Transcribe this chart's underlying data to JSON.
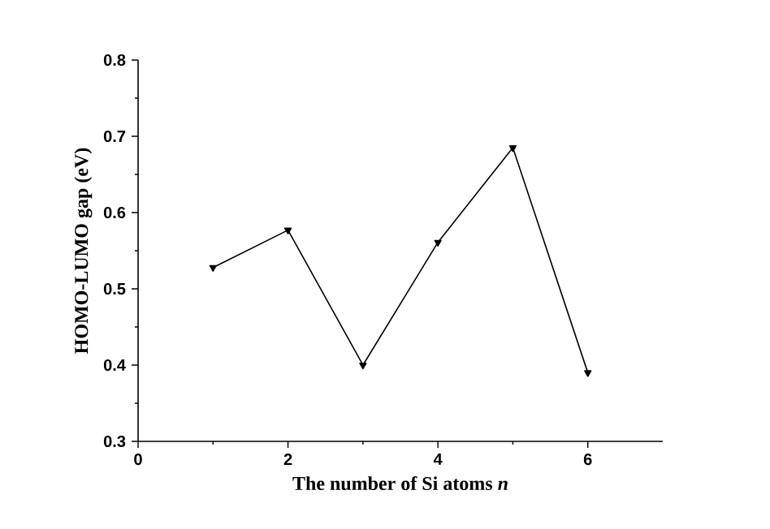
{
  "chart_data": {
    "type": "line",
    "xlabel": "The number of Si atoms *n*",
    "ylabel": "HOMO-LUMO gap (eV)",
    "x": [
      1,
      2,
      3,
      4,
      5,
      6
    ],
    "series": [
      {
        "color": "#000000",
        "values": [
          0.528,
          0.577,
          0.4,
          0.561,
          0.685,
          0.39
        ]
      }
    ],
    "xlim": [
      0,
      7
    ],
    "ylim": [
      0.3,
      0.8
    ],
    "xticks": [
      0,
      2,
      4,
      6
    ],
    "yticks": [
      0.3,
      0.4,
      0.5,
      0.6,
      0.7,
      0.8
    ],
    "marker": "triangle",
    "line_style": "solid"
  }
}
